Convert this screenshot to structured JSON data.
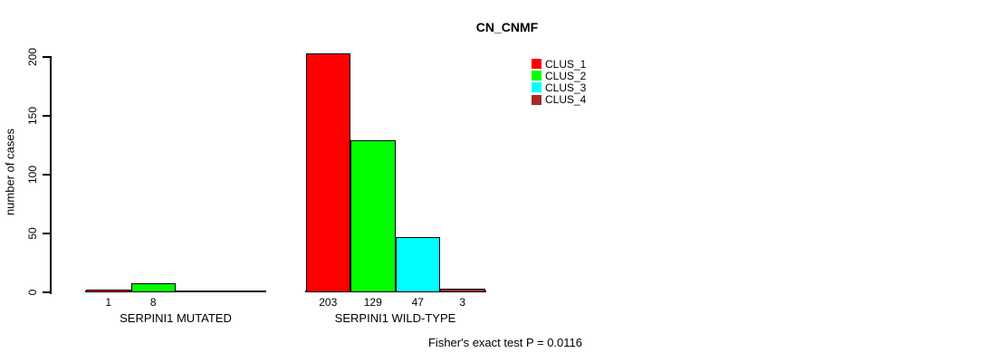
{
  "chart_data": {
    "type": "bar",
    "title": "CN_CNMF",
    "ylabel": "number of cases",
    "ylim": [
      0,
      200
    ],
    "yticks": [
      0,
      50,
      100,
      150,
      200
    ],
    "grid": false,
    "categories": [
      "SERPINI1 MUTATED",
      "SERPINI1 WILD-TYPE"
    ],
    "series": [
      {
        "name": "CLUS_1",
        "color": "#FF0000",
        "values": [
          1,
          203
        ]
      },
      {
        "name": "CLUS_2",
        "color": "#00FF00",
        "values": [
          8,
          129
        ]
      },
      {
        "name": "CLUS_3",
        "color": "#00FFFF",
        "values": [
          0,
          47
        ]
      },
      {
        "name": "CLUS_4",
        "color": "#A52A2A",
        "values": [
          0,
          3
        ]
      }
    ],
    "value_labels": {
      "show": true,
      "hide_zero": true,
      "mutated": [
        "1",
        "8"
      ],
      "wild_type": [
        "203",
        "129",
        "47",
        "3"
      ]
    },
    "legend_position": "top-right",
    "legend_entries": [
      "CLUS_1",
      "CLUS_2",
      "CLUS_3",
      "CLUS_4"
    ],
    "annotation": "Fisher's exact test P = 0.0116"
  }
}
